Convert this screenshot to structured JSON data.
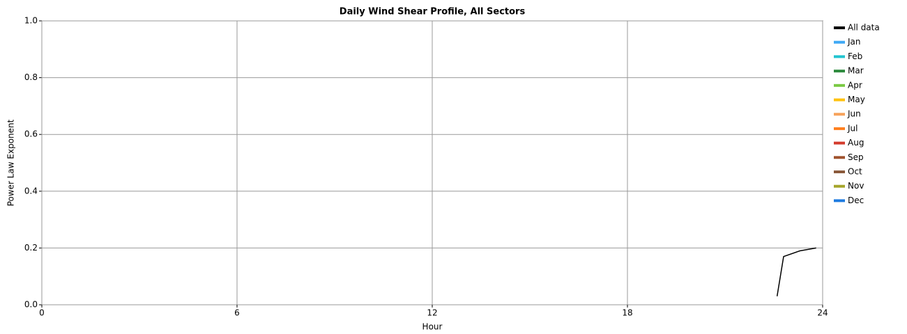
{
  "chart_data": {
    "type": "line",
    "title": "Daily Wind Shear Profile, All Sectors",
    "x_label": "Hour",
    "y_label": "Power Law Exponent",
    "x": [
      22.6,
      22.7,
      22.8,
      23.3,
      23.8
    ],
    "series": [
      {
        "name": "All data",
        "color": "#000000",
        "values": [
          0.03,
          0.1,
          0.17,
          0.19,
          0.2
        ]
      },
      {
        "name": "Jan",
        "color": "#3fa9f5",
        "values": [
          null,
          null,
          null,
          null,
          null
        ]
      },
      {
        "name": "Feb",
        "color": "#22c4d0",
        "values": [
          null,
          null,
          null,
          null,
          null
        ]
      },
      {
        "name": "Mar",
        "color": "#2e8b3e",
        "values": [
          null,
          null,
          null,
          null,
          null
        ]
      },
      {
        "name": "Apr",
        "color": "#7ac943",
        "values": [
          null,
          null,
          null,
          null,
          null
        ]
      },
      {
        "name": "May",
        "color": "#ffc20e",
        "values": [
          null,
          null,
          null,
          null,
          null
        ]
      },
      {
        "name": "Jun",
        "color": "#f7a35c",
        "values": [
          null,
          null,
          null,
          null,
          null
        ]
      },
      {
        "name": "Jul",
        "color": "#ff7f1e",
        "values": [
          null,
          null,
          null,
          null,
          null
        ]
      },
      {
        "name": "Aug",
        "color": "#d33a2c",
        "values": [
          null,
          null,
          null,
          null,
          null
        ]
      },
      {
        "name": "Sep",
        "color": "#a0522d",
        "values": [
          null,
          null,
          null,
          null,
          null
        ]
      },
      {
        "name": "Oct",
        "color": "#8b5a3c",
        "values": [
          null,
          null,
          null,
          null,
          null
        ]
      },
      {
        "name": "Nov",
        "color": "#a5a52a",
        "values": [
          null,
          null,
          null,
          null,
          null
        ]
      },
      {
        "name": "Dec",
        "color": "#1e7be0",
        "values": [
          null,
          null,
          null,
          null,
          null
        ]
      }
    ],
    "xlim": [
      0,
      24
    ],
    "xticks": [
      0,
      6,
      12,
      18,
      24
    ],
    "ylim": [
      0,
      1
    ],
    "yticks": [
      {
        "value": 0,
        "label": "0.0"
      },
      0.2,
      0.4,
      0.6,
      0.8,
      {
        "value": 1,
        "label": "1.0"
      }
    ],
    "grid": true,
    "legend": "right"
  }
}
